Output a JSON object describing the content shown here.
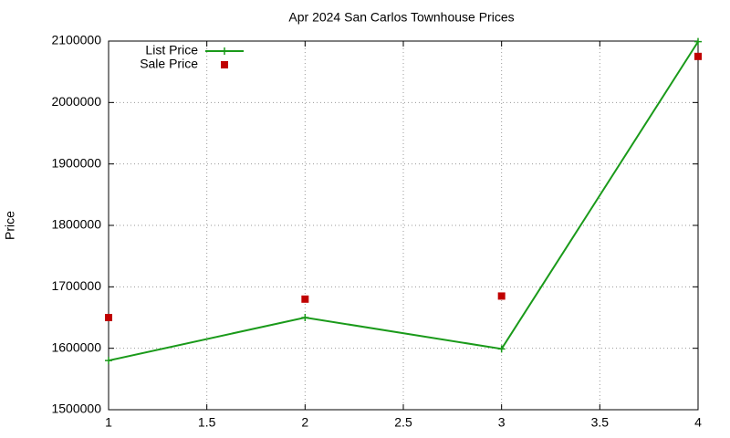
{
  "chart_data": {
    "type": "line",
    "title": "Apr 2024 San Carlos Townhouse Prices",
    "y_label": "Price",
    "x": [
      1,
      2,
      3,
      4
    ],
    "series": [
      {
        "name": "List Price",
        "color": "#1a9a1a",
        "style": "linespoints",
        "values": [
          1580000,
          1650000,
          1599000,
          2099000
        ]
      },
      {
        "name": "Sale Price",
        "color": "#c00000",
        "style": "points",
        "values": [
          1650000,
          1680000,
          1685000,
          2075000
        ]
      }
    ],
    "xlim": [
      1,
      4
    ],
    "xticks": [
      1,
      1.5,
      2,
      2.5,
      3,
      3.5,
      4
    ],
    "ylim": [
      1500000,
      2100000
    ],
    "yticks": [
      1500000,
      1600000,
      1700000,
      1800000,
      1900000,
      2000000,
      2100000
    ],
    "grid": true,
    "legend": "top-left"
  }
}
